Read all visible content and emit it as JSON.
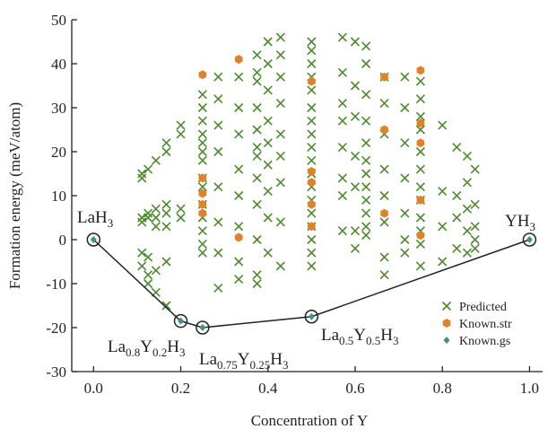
{
  "chart_data": {
    "type": "scatter",
    "x_label": "Concentration of Y",
    "y_label": "Formation energy (meV/atom)",
    "xlim": [
      -0.05,
      1.03
    ],
    "ylim": [
      -30,
      50
    ],
    "xticks": [
      {
        "value": 0,
        "label": "0.0"
      },
      0.2,
      0.4,
      0.6,
      0.8,
      {
        "value": 1,
        "label": "1.0"
      }
    ],
    "yticks": [
      -30,
      -20,
      -10,
      0,
      10,
      20,
      30,
      40,
      50
    ],
    "legend": "lower right",
    "series": [
      {
        "name": "Predicted",
        "color": "#4e8a2e",
        "marker": "x",
        "x": [
          0.111,
          0.111,
          0.111,
          0.111,
          0.111,
          0.111,
          0.125,
          0.125,
          0.125,
          0.125,
          0.125,
          0.125,
          0.143,
          0.143,
          0.143,
          0.143,
          0.143,
          0.143,
          0.167,
          0.167,
          0.167,
          0.167,
          0.167,
          0.167,
          0.167,
          0.2,
          0.2,
          0.2,
          0.2,
          0.25,
          0.25,
          0.25,
          0.25,
          0.25,
          0.25,
          0.25,
          0.25,
          0.25,
          0.25,
          0.25,
          0.25,
          0.25,
          0.25,
          0.286,
          0.286,
          0.286,
          0.286,
          0.286,
          0.286,
          0.286,
          0.286,
          0.333,
          0.333,
          0.333,
          0.333,
          0.333,
          0.333,
          0.333,
          0.333,
          0.375,
          0.375,
          0.375,
          0.375,
          0.375,
          0.375,
          0.375,
          0.375,
          0.375,
          0.375,
          0.375,
          0.375,
          0.4,
          0.4,
          0.4,
          0.4,
          0.4,
          0.4,
          0.4,
          0.4,
          0.4,
          0.429,
          0.429,
          0.429,
          0.429,
          0.429,
          0.429,
          0.429,
          0.429,
          0.429,
          0.5,
          0.5,
          0.5,
          0.5,
          0.5,
          0.5,
          0.5,
          0.5,
          0.5,
          0.5,
          0.5,
          0.5,
          0.5,
          0.5,
          0.5,
          0.5,
          0.5,
          0.5,
          0.571,
          0.571,
          0.571,
          0.571,
          0.571,
          0.571,
          0.571,
          0.571,
          0.6,
          0.6,
          0.6,
          0.6,
          0.6,
          0.6,
          0.6,
          0.625,
          0.625,
          0.625,
          0.625,
          0.625,
          0.625,
          0.625,
          0.625,
          0.625,
          0.625,
          0.625,
          0.625,
          0.667,
          0.667,
          0.667,
          0.667,
          0.667,
          0.667,
          0.667,
          0.667,
          0.714,
          0.714,
          0.714,
          0.714,
          0.714,
          0.714,
          0.714,
          0.75,
          0.75,
          0.75,
          0.75,
          0.75,
          0.75,
          0.75,
          0.75,
          0.75,
          0.75,
          0.75,
          0.75,
          0.8,
          0.8,
          0.8,
          0.8,
          0.833,
          0.833,
          0.833,
          0.833,
          0.857,
          0.857,
          0.857,
          0.857,
          0.857,
          0.875,
          0.875,
          0.875,
          0.875,
          0.875
        ],
        "values": [
          15,
          14,
          5,
          4,
          -3,
          -6,
          16,
          6,
          5,
          -8,
          -10,
          -4,
          18,
          7,
          3,
          -12,
          -7,
          5,
          20,
          22,
          8,
          6,
          -5,
          -15,
          3,
          26,
          24,
          7,
          5,
          33,
          30,
          27,
          22,
          20,
          18,
          12,
          8,
          5,
          2,
          -1,
          -3,
          14,
          24,
          37,
          32,
          26,
          20,
          12,
          4,
          -3,
          -11,
          37,
          30,
          24,
          16,
          10,
          3,
          -5,
          -9,
          42,
          36,
          30,
          25,
          21,
          19,
          14,
          8,
          0,
          -8,
          -10,
          38,
          45,
          40,
          34,
          27,
          22,
          17,
          11,
          5,
          -3,
          46,
          42,
          37,
          31,
          24,
          19,
          13,
          4,
          -6,
          45,
          43,
          40,
          37,
          34,
          30,
          27,
          24,
          21,
          18,
          15,
          12,
          9,
          6,
          3,
          0,
          -3,
          -6,
          46,
          38,
          31,
          27,
          21,
          14,
          10,
          2,
          45,
          35,
          28,
          19,
          12,
          2,
          -2,
          44,
          40,
          33,
          27,
          22,
          18,
          15,
          12,
          9,
          6,
          3,
          1,
          37,
          31,
          24,
          16,
          10,
          4,
          -4,
          -8,
          37,
          30,
          22,
          14,
          6,
          0,
          -3,
          36,
          32,
          28,
          25,
          20,
          16,
          12,
          9,
          5,
          2,
          -1,
          -6,
          26,
          11,
          3,
          -5,
          21,
          10,
          5,
          -2,
          19,
          13,
          7,
          2,
          -3,
          16,
          8,
          3,
          0,
          -2
        ]
      },
      {
        "name": "Known.str",
        "color": "#e0822a",
        "marker": "hexagon",
        "x": [
          0.25,
          0.25,
          0.25,
          0.25,
          0.25,
          0.333,
          0.333,
          0.5,
          0.5,
          0.5,
          0.5,
          0.5,
          0.667,
          0.667,
          0.667,
          0.75,
          0.75,
          0.75,
          0.75,
          0.75
        ],
        "values": [
          37.5,
          14,
          10.5,
          8,
          6,
          41,
          0.5,
          36,
          15.5,
          13,
          8,
          3,
          37,
          25,
          6,
          38.5,
          26.5,
          22,
          9,
          1
        ]
      },
      {
        "name": "Known.gs",
        "color": "#3f8f8a",
        "marker": "diamond",
        "hull": true,
        "x": [
          0,
          0.2,
          0.25,
          0.5,
          1
        ],
        "values": [
          0,
          -18.5,
          -20,
          -17.5,
          0
        ]
      }
    ],
    "annotations": [
      {
        "parts": [
          "LaH",
          "3"
        ]
      },
      {
        "parts": [
          "La",
          "0.8",
          "Y",
          "0.2",
          "H",
          "3"
        ]
      },
      {
        "parts": [
          "La",
          "0.75",
          "Y",
          "0.25",
          "H",
          "3"
        ]
      },
      {
        "parts": [
          "La",
          "0.5",
          "Y",
          "0.5",
          "H",
          "3"
        ]
      },
      {
        "parts": [
          "YH",
          "3"
        ]
      }
    ]
  }
}
